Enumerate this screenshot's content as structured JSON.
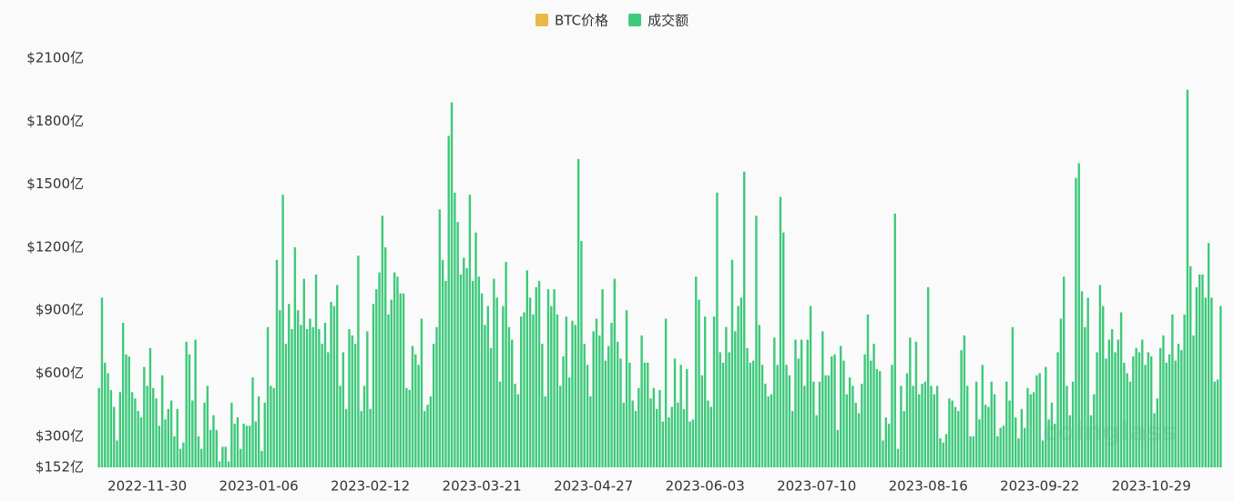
{
  "chart_data": {
    "type": "bar",
    "legend": [
      {
        "name": "BTC价格",
        "color": "#e8b84a"
      },
      {
        "name": "成交额",
        "color": "#3dc97a"
      }
    ],
    "watermark": "coinglass",
    "color": "#3dc97a",
    "ylim": [
      152,
      2100
    ],
    "yticks": [
      {
        "value": 152,
        "label": "$152亿"
      },
      {
        "value": 300,
        "label": "$300亿"
      },
      {
        "value": 600,
        "label": "$600亿"
      },
      {
        "value": 900,
        "label": "$900亿"
      },
      {
        "value": 1200,
        "label": "$1200亿"
      },
      {
        "value": 1500,
        "label": "$1500亿"
      },
      {
        "value": 1800,
        "label": "$1800亿"
      },
      {
        "value": 2100,
        "label": "$2100亿"
      }
    ],
    "grid": false,
    "categories": [
      null,
      null,
      null,
      null,
      null,
      null,
      null,
      null,
      null,
      null,
      null,
      null,
      null,
      null,
      null,
      null,
      "2022-11-30",
      null,
      null,
      null,
      null,
      null,
      null,
      null,
      null,
      null,
      null,
      null,
      null,
      null,
      null,
      null,
      null,
      null,
      null,
      null,
      null,
      null,
      null,
      null,
      null,
      null,
      null,
      null,
      null,
      null,
      null,
      null,
      null,
      null,
      null,
      null,
      null,
      "2023-01-06",
      null,
      null,
      null,
      null,
      null,
      null,
      null,
      null,
      null,
      null,
      null,
      null,
      null,
      null,
      null,
      null,
      null,
      null,
      null,
      null,
      null,
      null,
      null,
      null,
      null,
      null,
      null,
      null,
      null,
      null,
      null,
      null,
      null,
      null,
      null,
      null,
      "2023-02-12",
      null,
      null,
      null,
      null,
      null,
      null,
      null,
      null,
      null,
      null,
      null,
      null,
      null,
      null,
      null,
      null,
      null,
      null,
      null,
      null,
      null,
      null,
      null,
      null,
      null,
      null,
      null,
      null,
      null,
      null,
      null,
      null,
      null,
      null,
      null,
      null,
      "2023-03-21",
      null,
      null,
      null,
      null,
      null,
      null,
      null,
      null,
      null,
      null,
      null,
      null,
      null,
      null,
      null,
      null,
      null,
      null,
      null,
      null,
      null,
      null,
      null,
      null,
      null,
      null,
      null,
      null,
      null,
      null,
      null,
      null,
      null,
      null,
      null,
      null,
      "2023-04-27",
      null,
      null,
      null,
      null,
      null,
      null,
      null,
      null,
      null,
      null,
      null,
      null,
      null,
      null,
      null,
      null,
      null,
      null,
      null,
      null,
      null,
      null,
      null,
      null,
      null,
      null,
      null,
      null,
      null,
      null,
      null,
      null,
      null,
      null,
      null,
      null,
      "2023-06-03",
      null,
      null,
      null,
      null,
      null,
      null,
      null,
      null,
      null,
      null,
      null,
      null,
      null,
      null,
      null,
      null,
      null,
      null,
      null,
      null,
      null,
      null,
      null,
      null,
      null,
      null,
      null,
      null,
      null,
      null,
      null,
      null,
      null,
      null,
      null,
      null,
      "2023-07-10",
      null,
      null,
      null,
      null,
      null,
      null,
      null,
      null,
      null,
      null,
      null,
      null,
      null,
      null,
      null,
      null,
      null,
      null,
      null,
      null,
      null,
      null,
      null,
      null,
      null,
      null,
      null,
      null,
      null,
      null,
      null,
      null,
      null,
      null,
      null,
      null,
      "2023-08-16",
      null,
      null,
      null,
      null,
      null,
      null,
      null,
      null,
      null,
      null,
      null,
      null,
      null,
      null,
      null,
      null,
      null,
      null,
      null,
      null,
      null,
      null,
      null,
      null,
      null,
      null,
      null,
      null,
      null,
      null,
      null,
      null,
      null,
      null,
      null,
      null,
      "2023-09-22",
      null,
      null,
      null,
      null,
      null,
      null,
      null,
      null,
      null,
      null,
      null,
      null,
      null,
      null,
      null,
      null,
      null,
      null,
      null,
      null,
      null,
      null,
      null,
      null,
      null,
      null,
      null,
      null,
      null,
      null,
      null,
      null,
      null,
      null,
      null,
      null,
      "2023-10-29",
      null,
      null,
      null,
      null,
      null,
      null,
      null,
      null,
      null,
      null,
      null,
      null,
      null,
      null,
      null,
      null,
      null,
      null,
      null,
      null,
      null,
      null,
      null
    ],
    "values": [
      530,
      960,
      650,
      600,
      520,
      440,
      280,
      510,
      840,
      690,
      680,
      510,
      480,
      420,
      390,
      630,
      540,
      720,
      530,
      480,
      350,
      590,
      380,
      430,
      470,
      300,
      430,
      240,
      270,
      750,
      690,
      470,
      760,
      300,
      240,
      460,
      540,
      330,
      400,
      330,
      180,
      250,
      250,
      180,
      460,
      360,
      390,
      240,
      360,
      350,
      350,
      580,
      370,
      490,
      230,
      460,
      820,
      540,
      530,
      1140,
      900,
      1450,
      740,
      930,
      810,
      1200,
      900,
      830,
      1050,
      810,
      860,
      820,
      1070,
      810,
      740,
      840,
      700,
      940,
      920,
      1020,
      540,
      700,
      430,
      810,
      780,
      740,
      1160,
      420,
      540,
      800,
      430,
      930,
      1000,
      1080,
      1350,
      1200,
      880,
      950,
      1080,
      1060,
      980,
      980,
      530,
      520,
      730,
      690,
      640,
      860,
      420,
      450,
      490,
      740,
      820,
      1380,
      1140,
      1040,
      1730,
      1890,
      1460,
      1320,
      1070,
      1150,
      1100,
      1450,
      1040,
      1270,
      1060,
      980,
      830,
      920,
      720,
      1050,
      960,
      560,
      920,
      1130,
      820,
      760,
      550,
      500,
      870,
      890,
      1090,
      960,
      880,
      1010,
      1040,
      740,
      490,
      1000,
      920,
      1000,
      880,
      540,
      680,
      870,
      580,
      850,
      830,
      1620,
      1230,
      740,
      640,
      490,
      800,
      860,
      780,
      1000,
      660,
      730,
      840,
      1050,
      750,
      670,
      460,
      900,
      650,
      470,
      420,
      530,
      780,
      650,
      650,
      480,
      530,
      430,
      520,
      370,
      860,
      390,
      440,
      670,
      460,
      640,
      430,
      620,
      370,
      380,
      1060,
      950,
      590,
      870,
      470,
      440,
      870,
      1460,
      700,
      650,
      820,
      700,
      1140,
      800,
      920,
      960,
      1560,
      720,
      650,
      660,
      1350,
      830,
      640,
      550,
      490,
      500,
      770,
      640,
      1440,
      1270,
      640,
      590,
      420,
      760,
      670,
      760,
      540,
      760,
      920,
      560,
      400,
      560,
      800,
      590,
      590,
      680,
      690,
      330,
      730,
      660,
      500,
      580,
      540,
      460,
      410,
      550,
      690,
      880,
      660,
      740,
      620,
      610,
      280,
      390,
      360,
      640,
      1360,
      240,
      540,
      420,
      600,
      770,
      540,
      750,
      500,
      550,
      560,
      1010,
      540,
      500,
      540,
      290,
      270,
      310,
      480,
      470,
      440,
      420,
      710,
      780,
      540,
      300,
      300,
      560,
      380,
      640,
      450,
      440,
      560,
      500,
      300,
      340,
      350,
      560,
      470,
      820,
      390,
      290,
      430,
      340,
      530,
      500,
      510,
      590,
      600,
      280,
      630,
      380,
      460,
      360,
      700,
      860,
      1060,
      540,
      400,
      560,
      1530,
      1600,
      990,
      820,
      960,
      400,
      500,
      700,
      1020,
      920,
      670,
      760,
      810,
      700,
      760,
      890,
      650,
      600,
      560,
      680,
      720,
      700,
      760,
      640,
      700,
      680,
      410,
      480,
      720,
      780,
      650,
      690,
      880,
      660,
      740,
      710,
      880,
      1950,
      1110,
      780,
      1010,
      1070,
      1070,
      960,
      1220,
      960,
      560,
      570,
      920
    ]
  }
}
